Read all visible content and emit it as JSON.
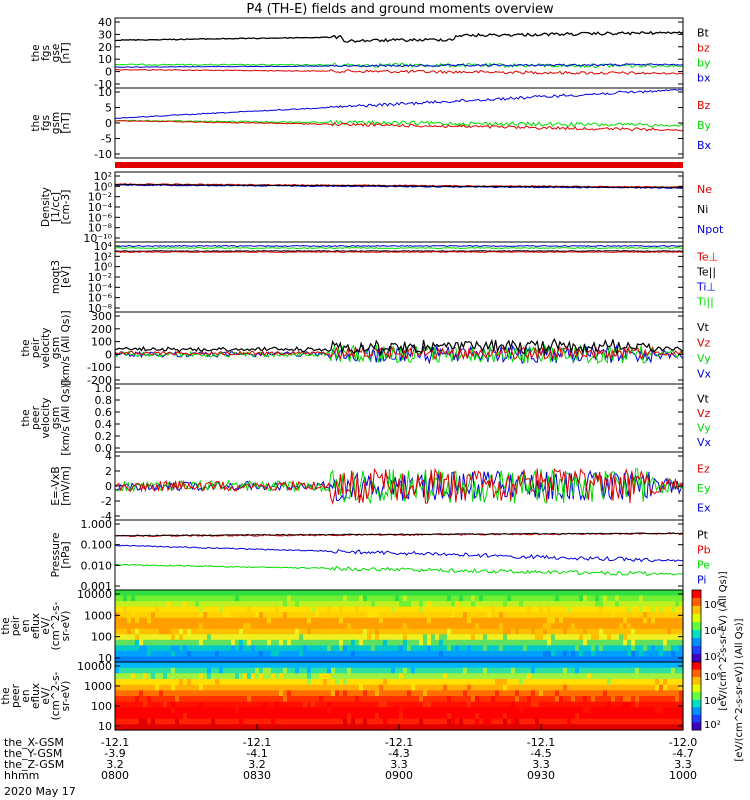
{
  "title": "P4 (TH-E) fields and ground moments overview",
  "colors": {
    "black": "#000000",
    "red": "#e00000",
    "green": "#00dd00",
    "blue": "#0000dd"
  },
  "panels": [
    {
      "id": "fgs-gse",
      "ylabel": [
        "the",
        "fgs",
        "gse",
        "[nT]"
      ],
      "ticks": [
        "40",
        "30",
        "20",
        "10",
        "0",
        "-10"
      ],
      "legend": [
        [
          "Bt",
          "black"
        ],
        [
          "bz",
          "red"
        ],
        [
          "by",
          "green"
        ],
        [
          "bx",
          "blue"
        ]
      ]
    },
    {
      "id": "fgs-gsm",
      "ylabel": [
        "the",
        "fgs",
        "gsm",
        "[nT]"
      ],
      "ticks": [
        "10",
        "5",
        "0",
        "-5",
        "-10"
      ],
      "legend": [
        [
          "Bz",
          "red"
        ],
        [
          "By",
          "green"
        ],
        [
          "Bx",
          "blue"
        ]
      ]
    },
    {
      "id": "density",
      "ylabel": [
        "Density",
        "[1/cc]",
        "[cm-3]"
      ],
      "ticks": [
        "10²",
        "10⁰",
        "10⁻²",
        "10⁻⁴",
        "10⁻⁶",
        "10⁻⁸",
        "10⁻¹⁰"
      ],
      "legend": [
        [
          "Ne",
          "red"
        ],
        [
          "Ni",
          "black"
        ],
        [
          "Npot",
          "blue"
        ]
      ]
    },
    {
      "id": "temperature",
      "ylabel": [
        "moqt3",
        "[eV]"
      ],
      "ticks": [
        "10⁴",
        "10²",
        "10⁰",
        "10⁻²",
        "10⁻⁴",
        "10⁻⁶",
        "10⁻⁸"
      ],
      "legend": [
        [
          "Te⊥",
          "red"
        ],
        [
          "Te||",
          "black"
        ],
        [
          "Ti⊥",
          "blue"
        ],
        [
          "Ti||",
          "green"
        ]
      ]
    },
    {
      "id": "peir-vel",
      "ylabel": [
        "the",
        "peir",
        "velocity",
        "gsm",
        "[km/s (All Qs)]"
      ],
      "ticks": [
        "300",
        "200",
        "100",
        "0",
        "-100",
        "-200"
      ],
      "legend": [
        [
          "Vt",
          "black"
        ],
        [
          "Vz",
          "red"
        ],
        [
          "Vy",
          "green"
        ],
        [
          "Vx",
          "blue"
        ]
      ]
    },
    {
      "id": "peer-vel",
      "ylabel": [
        "the",
        "peer",
        "velocity",
        "gsm",
        "[km/s (All Qs)]"
      ],
      "ticks": [
        "1.0",
        "0.8",
        "0.6",
        "0.4",
        "0.2",
        "0.0"
      ],
      "legend": [
        [
          "Vt",
          "black"
        ],
        [
          "Vz",
          "red"
        ],
        [
          "Vy",
          "green"
        ],
        [
          "Vx",
          "blue"
        ]
      ]
    },
    {
      "id": "efield",
      "ylabel": [
        "E=-VxB",
        "[mV/m]"
      ],
      "ticks": [
        "4",
        "2",
        "0",
        "-2",
        "-4"
      ],
      "legend": [
        [
          "Ez",
          "red"
        ],
        [
          "Ey",
          "green"
        ],
        [
          "Ex",
          "blue"
        ]
      ]
    },
    {
      "id": "pressure",
      "ylabel": [
        "Pressure",
        "[nPa]"
      ],
      "ticks": [
        "1.000",
        "0.100",
        "0.010",
        "0.001"
      ],
      "legend": [
        [
          "Pt",
          "black"
        ],
        [
          "Pb",
          "red"
        ],
        [
          "Pe",
          "green"
        ],
        [
          "Pi",
          "blue"
        ]
      ]
    },
    {
      "id": "peir-eflux",
      "ylabel": [
        "the",
        "peir",
        "en",
        "eflux",
        "eV/",
        "(cm^2-s-",
        "sr-eV)"
      ],
      "ticks": [
        "10000",
        "1000",
        "100",
        "10"
      ],
      "colorbar": [
        "10⁶",
        "10⁴",
        "10²"
      ]
    },
    {
      "id": "peer-eflux",
      "ylabel": [
        "the",
        "peer",
        "en",
        "eflux",
        "eV/",
        "(cm^2-s-",
        "sr-eV)"
      ],
      "ticks": [
        "10000",
        "1000",
        "100",
        "10"
      ],
      "colorbar": [
        "10⁶",
        "10⁴",
        "10²"
      ]
    }
  ],
  "colorbar_label": "[eV/(cm^2-s-sr-eV)] (All Qs)]",
  "colorbar_label_top": "[eV/(cm^2-s-sr-eV) (All Qs)]",
  "x_axis": {
    "rows": [
      {
        "label": "the_X-GSM",
        "values": [
          "-12.1",
          "-12.1",
          "-12.1",
          "-12.1",
          "-12.0"
        ]
      },
      {
        "label": "the_Y-GSM",
        "values": [
          "-3.9",
          "-4.1",
          "-4.3",
          "-4.5",
          "-4.7"
        ]
      },
      {
        "label": "the_Z-GSM",
        "values": [
          "3.2",
          "3.2",
          "3.3",
          "3.3",
          "3.3"
        ]
      },
      {
        "label": "hhmm",
        "values": [
          "0800",
          "0830",
          "0900",
          "0930",
          "1000"
        ]
      }
    ],
    "date": "2020 May 17"
  },
  "chart_data": {
    "type": "line",
    "title": "P4 (TH-E) fields and ground moments overview",
    "x": [
      "0800",
      "0830",
      "0900",
      "0930",
      "1000"
    ],
    "xlim": [
      "0800",
      "1000"
    ],
    "series": [
      {
        "name": "Bt",
        "panel": "fgs-gse",
        "values": [
          25,
          26,
          23,
          28,
          31
        ]
      },
      {
        "name": "by",
        "panel": "fgs-gse",
        "values": [
          6,
          4,
          4,
          5,
          6
        ]
      },
      {
        "name": "bz",
        "panel": "fgs-gse",
        "values": [
          2,
          0,
          1,
          -1,
          -1
        ]
      },
      {
        "name": "Bx",
        "panel": "fgs-gsm",
        "values": [
          1,
          2,
          3,
          7,
          13
        ]
      },
      {
        "name": "By",
        "panel": "fgs-gsm",
        "values": [
          0,
          -1,
          0,
          -1,
          -3
        ]
      },
      {
        "name": "Bz",
        "panel": "fgs-gsm",
        "values": [
          0,
          -1,
          -1,
          -2,
          -4
        ]
      },
      {
        "name": "Vt",
        "panel": "peir-vel",
        "values": [
          30,
          20,
          80,
          60,
          20
        ]
      },
      {
        "name": "Pb",
        "panel": "pressure",
        "values": [
          0.3,
          0.3,
          0.32,
          0.35,
          0.4
        ]
      },
      {
        "name": "Pi",
        "panel": "pressure",
        "values": [
          0.1,
          0.1,
          0.08,
          0.04,
          0.015
        ]
      },
      {
        "name": "Pe",
        "panel": "pressure",
        "values": [
          0.01,
          0.01,
          0.008,
          0.005,
          0.003
        ]
      }
    ]
  }
}
